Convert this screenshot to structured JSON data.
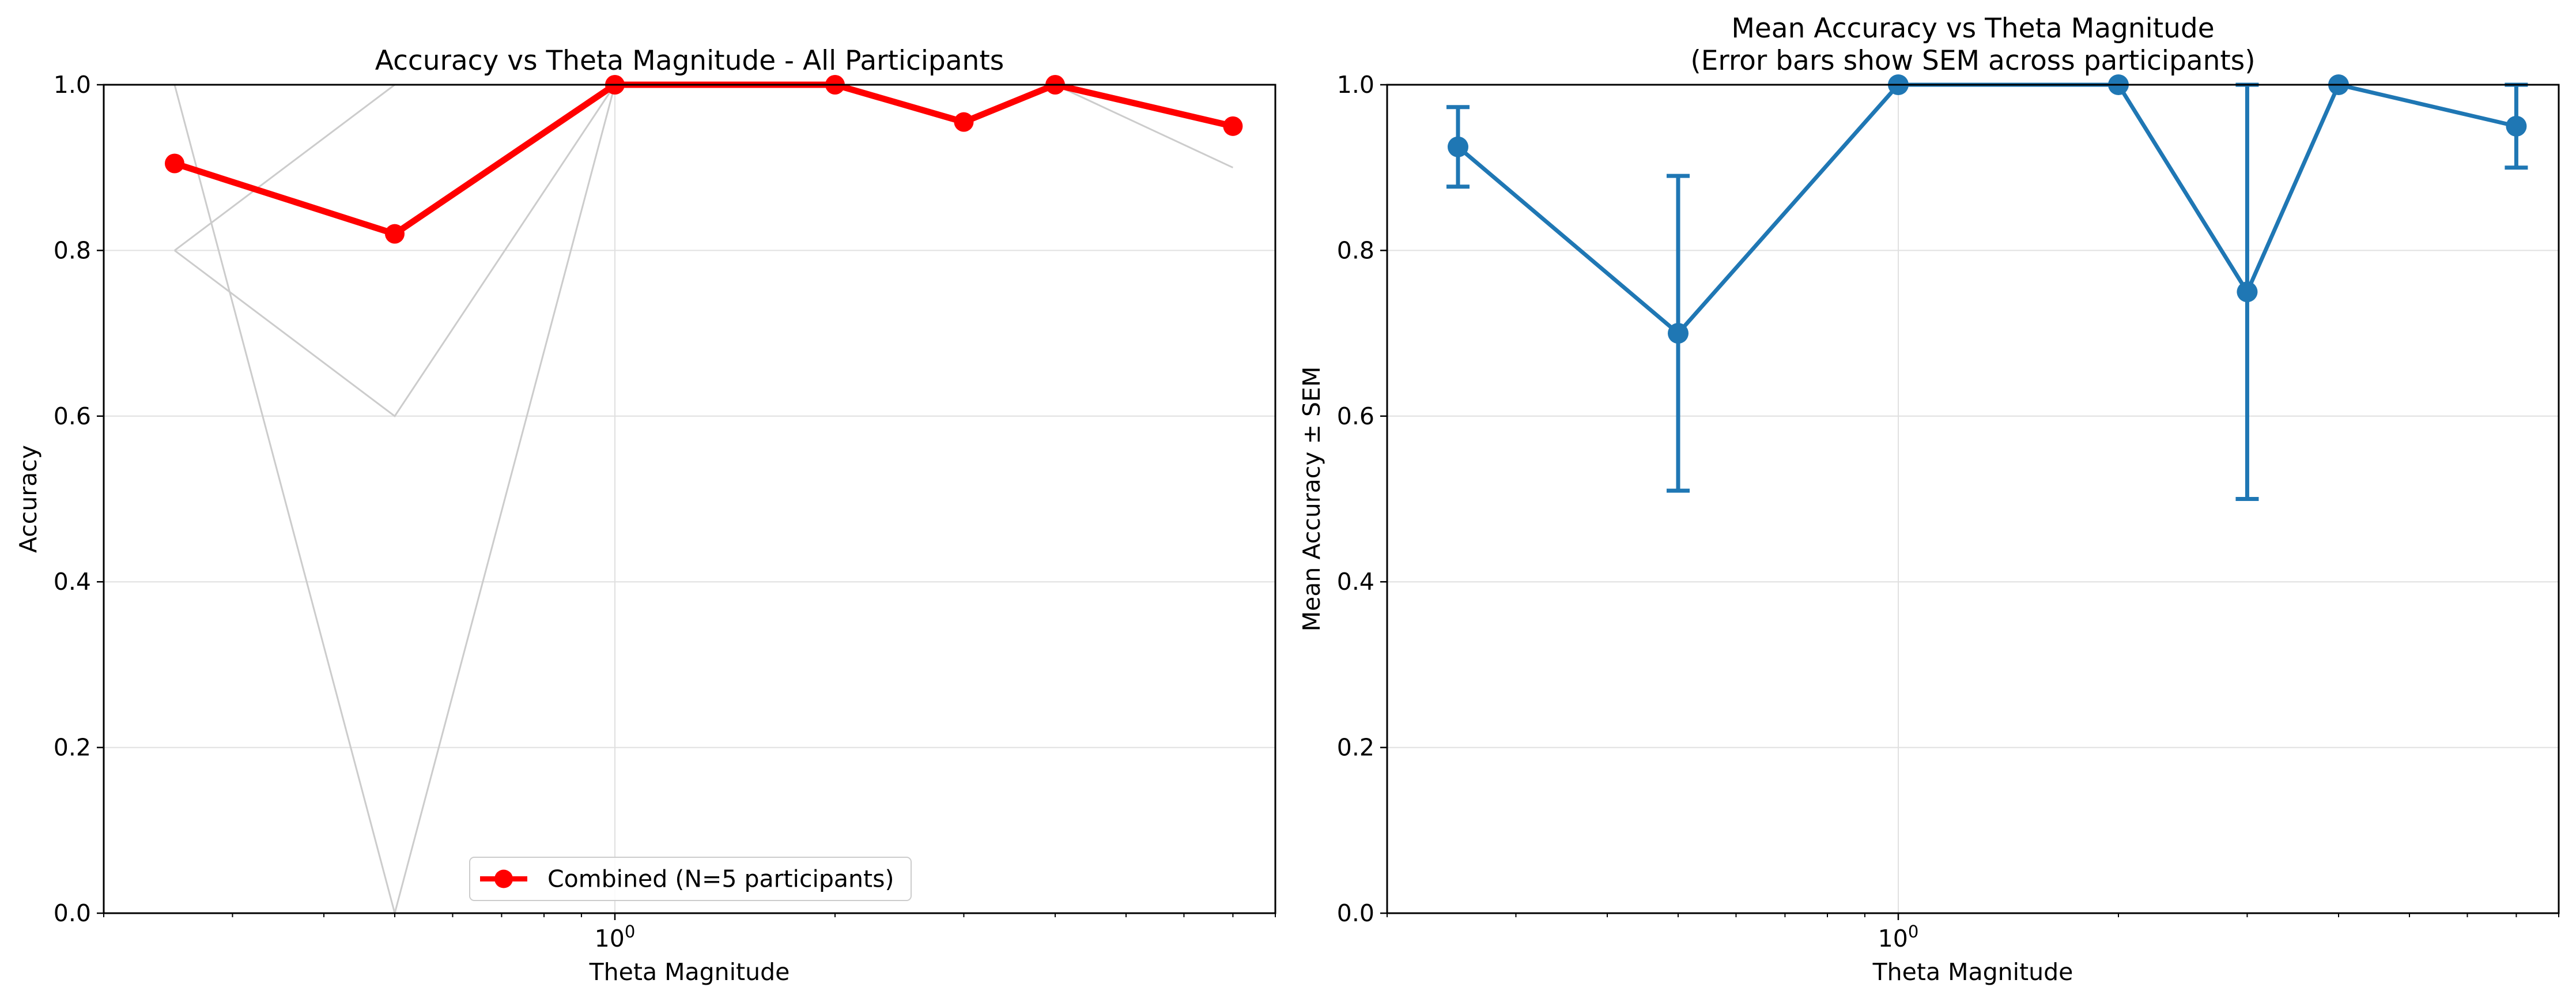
{
  "chart_data": [
    {
      "type": "line",
      "title": "Accuracy vs Theta Magnitude - All Participants",
      "xlabel": "Theta Magnitude",
      "ylabel": "Accuracy",
      "xscale": "log",
      "xlim": [
        0.2,
        8.0
      ],
      "ylim": [
        0.0,
        1.0
      ],
      "x_ticks": [
        {
          "value": 1,
          "label": "10"
        }
      ],
      "y_ticks": [
        0.0,
        0.2,
        0.4,
        0.6,
        0.8,
        1.0
      ],
      "y_tick_labels": [
        "0.0",
        "0.2",
        "0.4",
        "0.6",
        "0.8",
        "1.0"
      ],
      "grid": true,
      "legend": "lower center",
      "legend_label": "Combined (N=5 participants)",
      "colors": {
        "combined": "#ff0000",
        "participants": "#cccccc",
        "grid": "#e0e0e0"
      },
      "x": [
        0.25,
        0.5,
        1.0,
        2.0,
        3.0,
        4.0,
        7.0
      ],
      "series": [
        {
          "name": "Combined (N=5 participants)",
          "values": [
            0.905,
            0.82,
            1.0,
            1.0,
            0.955,
            1.0,
            0.95
          ]
        },
        {
          "values": [
            1.0,
            0.0,
            1.0,
            1.0,
            1.0,
            1.0,
            1.0
          ]
        },
        {
          "values": [
            0.8,
            0.6,
            1.0,
            1.0,
            1.0,
            1.0,
            0.9
          ]
        },
        {
          "values": [
            0.8,
            1.0,
            1.0,
            1.0,
            1.0,
            1.0,
            1.0
          ]
        }
      ]
    },
    {
      "type": "line",
      "title": "Mean Accuracy vs Theta Magnitude",
      "subtitle": "(Error bars show SEM across participants)",
      "xlabel": "Theta Magnitude",
      "ylabel": "Mean Accuracy ± SEM",
      "xscale": "log",
      "xlim": [
        0.2,
        8.0
      ],
      "ylim": [
        0.0,
        1.0
      ],
      "x_ticks": [
        {
          "value": 1,
          "label": "10"
        }
      ],
      "y_ticks": [
        0.0,
        0.2,
        0.4,
        0.6,
        0.8,
        1.0
      ],
      "y_tick_labels": [
        "0.0",
        "0.2",
        "0.4",
        "0.6",
        "0.8",
        "1.0"
      ],
      "grid": true,
      "colors": {
        "line": "#1f77b4",
        "grid": "#e0e0e0"
      },
      "x": [
        0.25,
        0.5,
        1.0,
        2.0,
        3.0,
        4.0,
        7.0
      ],
      "series": [
        {
          "values": [
            0.925,
            0.7,
            1.0,
            1.0,
            0.75,
            1.0,
            0.95
          ],
          "sem": [
            0.048,
            0.19,
            0.0,
            0.0,
            0.25,
            0.0,
            0.05
          ]
        }
      ]
    }
  ]
}
